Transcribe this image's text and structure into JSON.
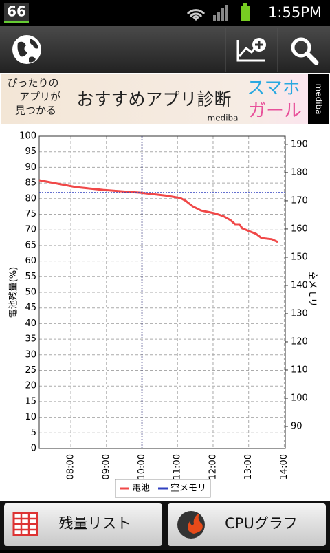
{
  "status_bar": {
    "badge": "66",
    "time": "1:55PM"
  },
  "ad": {
    "line1": "ぴったりの",
    "line2": "アプリが",
    "line3": "見つかる",
    "headline": "おすすめアプリ診断",
    "brand": "mediba",
    "side1": "スマホ",
    "side2": "ガール",
    "vertical": "mediba"
  },
  "chart_data": {
    "type": "line",
    "y_label": "電池残量(%)",
    "y2_label": "空メモリ",
    "xlim": [
      7.11,
      14.03
    ],
    "xticks": [
      {
        "value": 8,
        "label": "08:00"
      },
      {
        "value": 9,
        "label": "09:00"
      },
      {
        "value": 10,
        "label": "10:00"
      },
      {
        "value": 11,
        "label": "11:00"
      },
      {
        "value": 12,
        "label": "12:00"
      },
      {
        "value": 13,
        "label": "13:00"
      },
      {
        "value": 14,
        "label": "14:00"
      }
    ],
    "ylim": [
      0,
      100
    ],
    "yticks": [
      0,
      5,
      10,
      15,
      20,
      25,
      30,
      35,
      40,
      45,
      50,
      55,
      60,
      65,
      70,
      75,
      80,
      85,
      90,
      95,
      100
    ],
    "y2lim": [
      82.2,
      192.9
    ],
    "y2ticks": [
      90,
      100,
      110,
      120,
      130,
      140,
      150,
      160,
      170,
      180,
      190
    ],
    "grid": true,
    "series": [
      {
        "name": "電池",
        "color": "#f04848",
        "axis": "y",
        "x": [
          7.11,
          8.14,
          8.91,
          9.95,
          10.65,
          11.08,
          11.23,
          11.43,
          11.66,
          12.04,
          12.29,
          12.49,
          12.62,
          12.74,
          12.82,
          13.01,
          13.21,
          13.36,
          13.65,
          13.82
        ],
        "values": [
          85.9,
          83.7,
          82.8,
          81.9,
          81,
          80.2,
          79.3,
          77.5,
          76.2,
          75.3,
          74.4,
          73.1,
          71.8,
          71.8,
          70.5,
          69.6,
          68.7,
          67.4,
          67,
          66.1
        ]
      },
      {
        "name": "空メモリ",
        "color": "#3040c0",
        "axis": "y2",
        "x": [
          7.11,
          14.03
        ],
        "values": [
          172.9,
          172.9
        ]
      }
    ],
    "cursor_x": 10
  },
  "buttons": {
    "left": "残量リスト",
    "right": "CPUグラフ"
  }
}
